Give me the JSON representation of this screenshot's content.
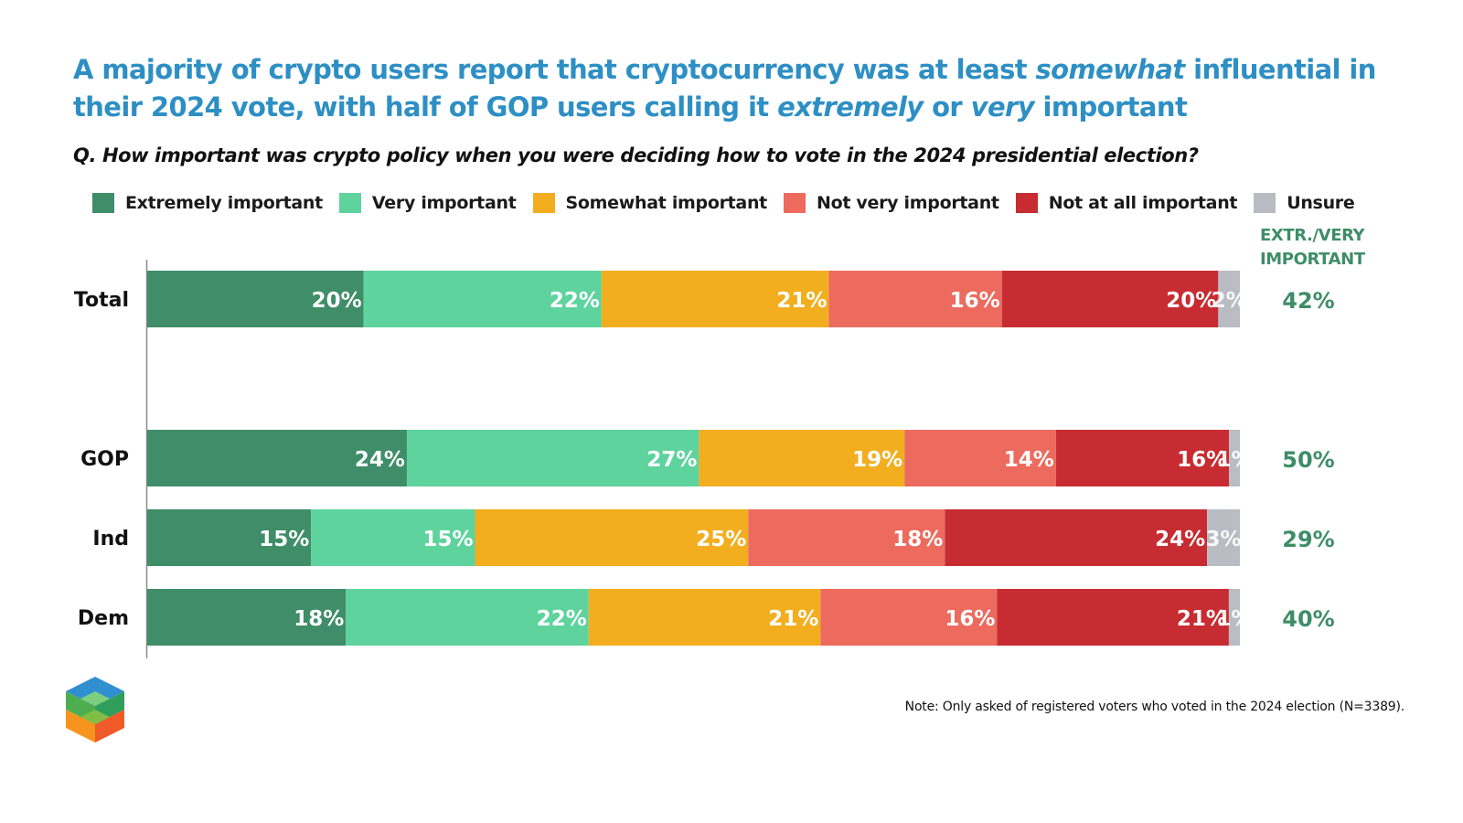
{
  "title": {
    "line1_a": "A majority of crypto users report that cryptocurrency was at least ",
    "line1_em": "somewhat",
    "line1_b": " influential in their 2024 vote, with half of GOP users calling it ",
    "line2_em1": "extremely",
    "line2_mid": " or ",
    "line2_em2": "very",
    "line2_b": " important"
  },
  "question": "Q. How important was crypto policy when you were deciding how to vote in the 2024 presidential election?",
  "column_header": {
    "line1": "EXTR./VERY",
    "line2": "IMPORTANT"
  },
  "note": "Note: Only asked of registered voters who voted in the 2024 election (N=3389).",
  "colors": {
    "title": "#2d8fc4",
    "total_text": "#3e8d68",
    "axis": "#8a8a8a"
  },
  "chart_data": {
    "type": "bar",
    "orientation": "horizontal-stacked",
    "title": "A majority of crypto users report that cryptocurrency was at least somewhat influential in their 2024 vote, with half of GOP users calling it extremely or very important",
    "xlabel": "",
    "ylabel": "",
    "unit": "%",
    "legend_position": "top",
    "categories": [
      "Total",
      "GOP",
      "Ind",
      "Dem"
    ],
    "series": [
      {
        "name": "Extremely important",
        "color": "#3f8d69",
        "values": [
          20,
          24,
          15,
          18
        ]
      },
      {
        "name": "Very important",
        "color": "#5fd39e",
        "values": [
          22,
          27,
          15,
          22
        ]
      },
      {
        "name": "Somewhat important",
        "color": "#f2ae1f",
        "values": [
          21,
          19,
          25,
          21
        ]
      },
      {
        "name": "Not very important",
        "color": "#ec6b5e",
        "values": [
          16,
          14,
          18,
          16
        ]
      },
      {
        "name": "Not at all important",
        "color": "#c72c32",
        "values": [
          20,
          16,
          24,
          21
        ]
      },
      {
        "name": "Unsure",
        "color": "#b9bcc3",
        "values": [
          2,
          1,
          3,
          1
        ]
      }
    ],
    "extr_very_important": [
      "42%",
      "50%",
      "29%",
      "40%"
    ]
  }
}
